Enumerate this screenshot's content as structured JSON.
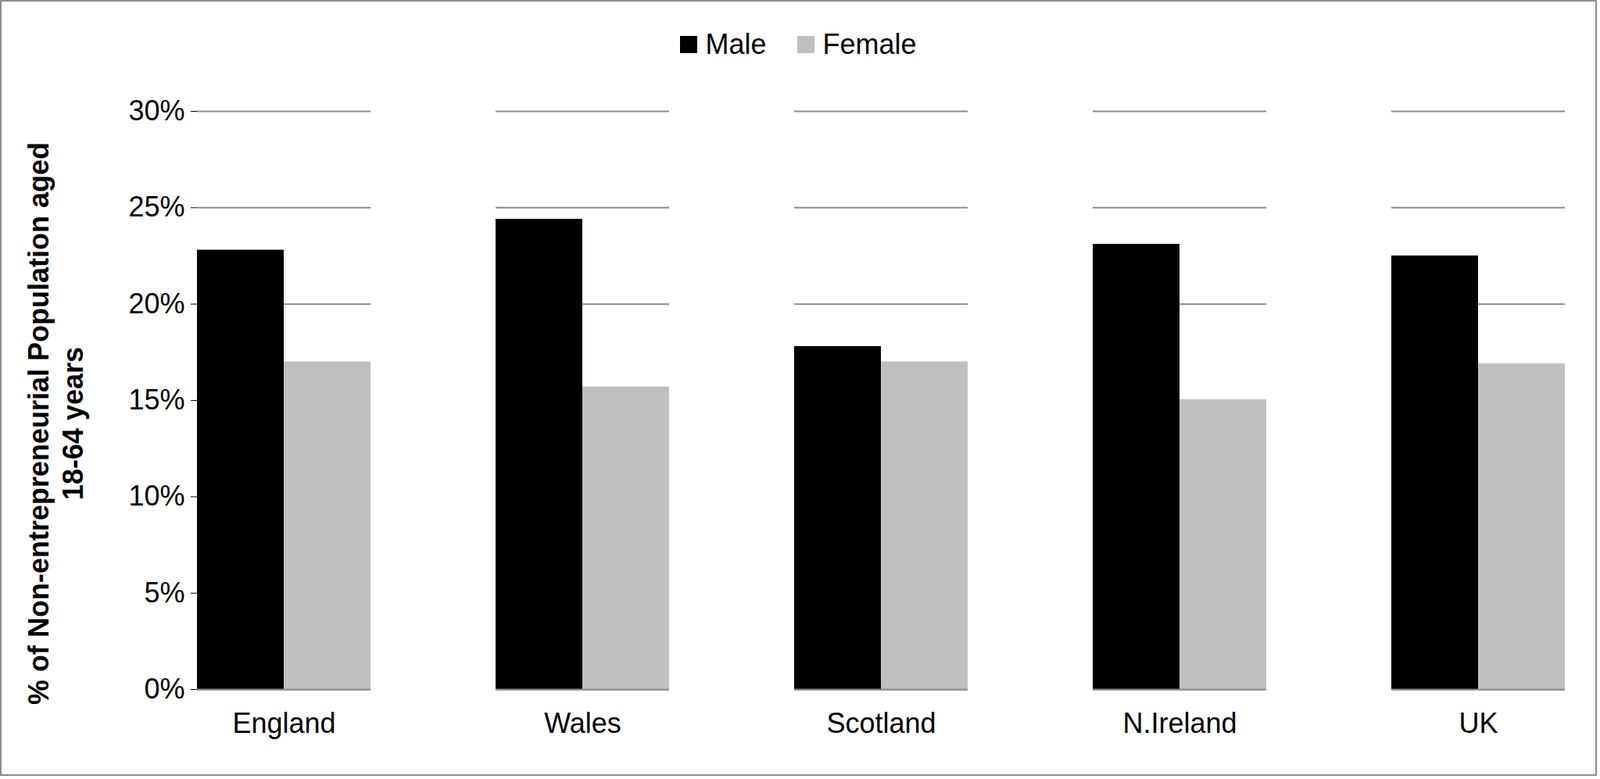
{
  "chart_data": {
    "type": "bar",
    "y_label": "% of Non-entrepreneurial Population aged 18-64 years",
    "categories": [
      "England",
      "Wales",
      "Scotland",
      "N.Ireland",
      "UK"
    ],
    "series": [
      {
        "name": "Male",
        "color": "#000000",
        "values": [
          22.8,
          24.4,
          17.8,
          23.1,
          22.5
        ]
      },
      {
        "name": "Female",
        "color": "#bfbfbf",
        "values": [
          17.0,
          15.7,
          17.0,
          15.0,
          16.9
        ]
      }
    ],
    "ylim": [
      0,
      30
    ],
    "yticks": [
      {
        "value": 0,
        "label": "0%"
      },
      {
        "value": 5,
        "label": "5%"
      },
      {
        "value": 10,
        "label": "10%"
      },
      {
        "value": 15,
        "label": "15%"
      },
      {
        "value": 20,
        "label": "20%"
      },
      {
        "value": 25,
        "label": "25%"
      },
      {
        "value": 30,
        "label": "30%"
      }
    ],
    "grid": true,
    "legend": "top"
  }
}
